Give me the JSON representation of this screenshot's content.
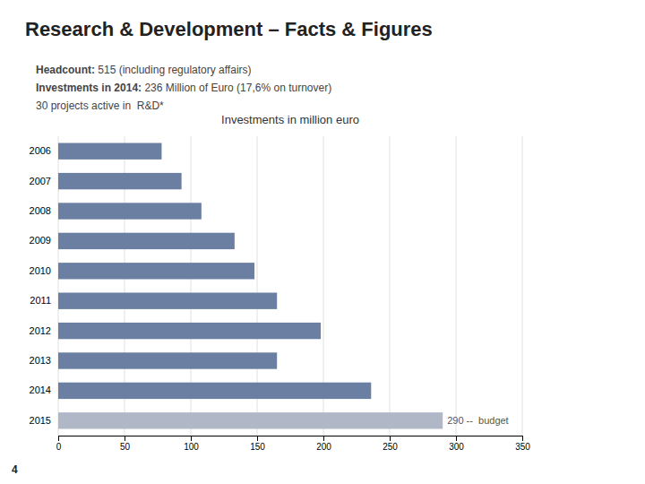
{
  "title": "Research & Development – Facts & Figures",
  "subtitle": [
    [
      "Headcount:",
      " 515 (including regulatory affairs)"
    ],
    [
      "Investments in 2014:",
      " 236 Million of Euro (17,6% on turnover)"
    ],
    [
      "30 projects active in  R&D*"
    ]
  ],
  "annotations": [
    "4"
  ],
  "chart_data": {
    "type": "bar",
    "orientation": "horizontal",
    "title": "Investments in million euro",
    "categories": [
      "2015",
      "2014",
      "2013",
      "2012",
      "2011",
      "2010",
      "2009",
      "2008",
      "2007",
      "2006"
    ],
    "values": [
      290,
      236,
      165,
      198,
      165,
      148,
      133,
      108,
      93,
      78
    ],
    "colors": [
      "#b0b8c8",
      "#6b7fa3",
      "#6b7fa3",
      "#6b7fa3",
      "#6b7fa3",
      "#6b7fa3",
      "#6b7fa3",
      "#6b7fa3",
      "#6b7fa3",
      "#6b7fa3"
    ],
    "xlim": [
      0,
      350
    ],
    "xticks": [
      0,
      50,
      100,
      150,
      200,
      250,
      300,
      350
    ],
    "grid": true,
    "annotations": [
      "290 --  budget"
    ]
  }
}
